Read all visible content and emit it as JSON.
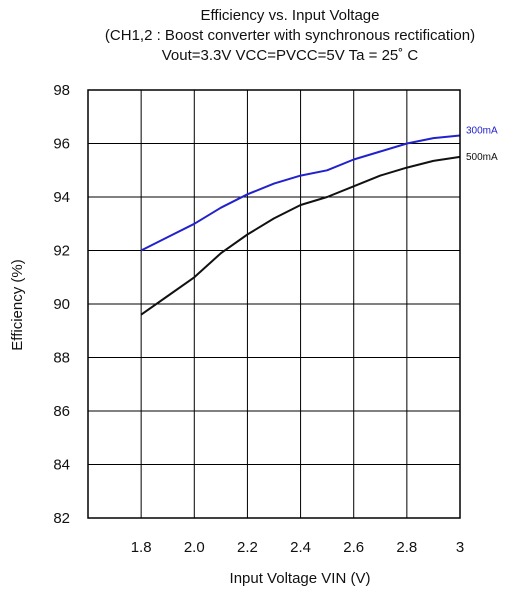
{
  "chart_data": {
    "type": "line",
    "title_lines": [
      "Efficiency vs. Input Voltage",
      "(CH1,2 : Boost converter with synchronous rectification)",
      "Vout=3.3V   VCC=PVCC=5V   Ta = 25˚ C"
    ],
    "xlabel": "Input Voltage VIN (V)",
    "ylabel": "Efficiency  (%)",
    "xlim": [
      1.6,
      3.0
    ],
    "ylim": [
      82,
      98
    ],
    "x_ticks": [
      "1.8",
      "2.0",
      "2.2",
      "2.4",
      "2.6",
      "2.8",
      "3"
    ],
    "y_ticks": [
      "82",
      "84",
      "86",
      "88",
      "90",
      "92",
      "94",
      "96",
      "98"
    ],
    "grid": true,
    "series": [
      {
        "name": "300mA",
        "color": "#2222cc",
        "x": [
          1.8,
          1.9,
          2.0,
          2.1,
          2.2,
          2.3,
          2.4,
          2.5,
          2.6,
          2.7,
          2.8,
          2.9,
          3.0
        ],
        "y": [
          92.0,
          92.5,
          93.0,
          93.6,
          94.1,
          94.5,
          94.8,
          95.0,
          95.4,
          95.7,
          96.0,
          96.2,
          96.3
        ]
      },
      {
        "name": "500mA",
        "color": "#111111",
        "x": [
          1.8,
          1.9,
          2.0,
          2.1,
          2.2,
          2.3,
          2.4,
          2.5,
          2.6,
          2.7,
          2.8,
          2.9,
          3.0
        ],
        "y": [
          89.6,
          90.3,
          91.0,
          91.9,
          92.6,
          93.2,
          93.7,
          94.0,
          94.4,
          94.8,
          95.1,
          95.35,
          95.5
        ]
      }
    ]
  }
}
